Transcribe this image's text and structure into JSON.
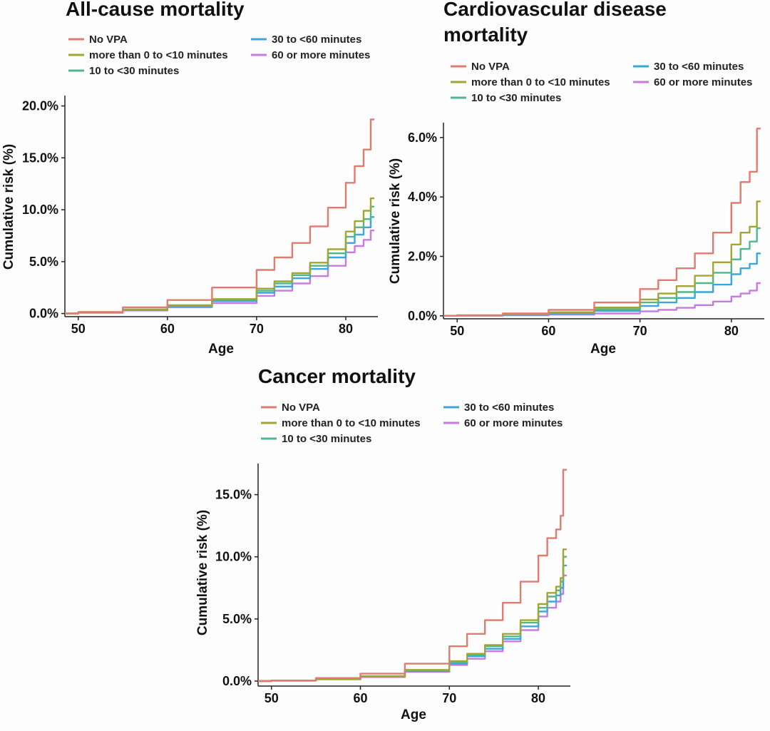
{
  "colors": {
    "No VPA": "#e07b6f",
    "more than 0 to <10 minutes": "#a3a533",
    "10 to <30 minutes": "#4fb88a",
    "30 to <60 minutes": "#3aa6df",
    "60 or more minutes": "#c97ae0"
  },
  "chart_data": [
    {
      "type": "line",
      "title": "All-cause mortality",
      "xlabel": "Age",
      "ylabel": "Cumulative risk (%)",
      "xlim": [
        48.5,
        83.6
      ],
      "ylim": [
        -0.3,
        21
      ],
      "xticks": [
        50,
        60,
        70,
        80
      ],
      "xtick_labels": [
        "50",
        "60",
        "70",
        "80"
      ],
      "yticks": [
        0,
        5,
        10,
        15,
        20
      ],
      "ytick_labels": [
        "0.0%",
        "5.0%",
        "10.0%",
        "15.0%",
        "20.0%"
      ],
      "legend_labels": [
        "No VPA",
        "more than 0 to <10 minutes",
        "10 to <30 minutes",
        "30 to <60 minutes",
        "60 or more minutes"
      ],
      "x": [
        48.5,
        50,
        55,
        60,
        65,
        70,
        72,
        74,
        76,
        78,
        80,
        81,
        82,
        82.8,
        83.2
      ],
      "series": [
        {
          "name": "No VPA",
          "values": [
            0,
            0.15,
            0.6,
            1.3,
            2.5,
            4.2,
            5.4,
            6.8,
            8.4,
            10.2,
            12.6,
            14.2,
            15.8,
            18.7,
            18.7
          ]
        },
        {
          "name": "more than 0 to <10 minutes",
          "values": [
            0,
            0.1,
            0.4,
            0.8,
            1.4,
            2.4,
            3.1,
            3.9,
            4.9,
            6.2,
            7.9,
            8.9,
            9.9,
            11.1,
            11.1
          ]
        },
        {
          "name": "10 to <30 minutes",
          "values": [
            0,
            0.1,
            0.35,
            0.75,
            1.3,
            2.2,
            2.9,
            3.7,
            4.6,
            5.8,
            7.4,
            8.3,
            9.1,
            10.3,
            10.3
          ]
        },
        {
          "name": "30 to <60 minutes",
          "values": [
            0,
            0.1,
            0.32,
            0.7,
            1.2,
            2.0,
            2.6,
            3.4,
            4.3,
            5.4,
            6.8,
            7.6,
            8.3,
            9.3,
            9.3
          ]
        },
        {
          "name": "60 or more minutes",
          "values": [
            0,
            0.08,
            0.3,
            0.6,
            1.0,
            1.7,
            2.2,
            2.9,
            3.6,
            4.6,
            5.9,
            6.5,
            7.1,
            8.0,
            8.0
          ]
        }
      ]
    },
    {
      "type": "line",
      "title": "Cardiovascular disease mortality",
      "xlabel": "Age",
      "ylabel": "Cumulative risk (%)",
      "xlim": [
        48.5,
        83.6
      ],
      "ylim": [
        -0.1,
        6.5
      ],
      "xticks": [
        50,
        60,
        70,
        80
      ],
      "xtick_labels": [
        "50",
        "60",
        "70",
        "80"
      ],
      "yticks": [
        0,
        2,
        4,
        6
      ],
      "ytick_labels": [
        "0.0%",
        "2.0%",
        "4.0%",
        "6.0%"
      ],
      "legend_labels": [
        "No VPA",
        "more than 0 to <10 minutes",
        "10 to <30 minutes",
        "30 to <60 minutes",
        "60 or more minutes"
      ],
      "x": [
        48.5,
        50,
        55,
        60,
        65,
        70,
        72,
        74,
        76,
        78,
        80,
        81,
        82,
        82.8,
        83.2
      ],
      "series": [
        {
          "name": "No VPA",
          "values": [
            0,
            0.02,
            0.08,
            0.2,
            0.45,
            0.9,
            1.2,
            1.6,
            2.1,
            2.8,
            3.8,
            4.5,
            4.85,
            6.3,
            6.3
          ]
        },
        {
          "name": "more than 0 to <10 minutes",
          "values": [
            0,
            0.01,
            0.05,
            0.12,
            0.28,
            0.55,
            0.75,
            1.0,
            1.35,
            1.8,
            2.4,
            2.8,
            3.0,
            3.85,
            3.85
          ]
        },
        {
          "name": "10 to <30 minutes",
          "values": [
            0,
            0.01,
            0.04,
            0.1,
            0.22,
            0.45,
            0.6,
            0.8,
            1.1,
            1.45,
            1.9,
            2.25,
            2.5,
            2.95,
            2.95
          ]
        },
        {
          "name": "30 to <60 minutes",
          "values": [
            0,
            0.01,
            0.03,
            0.08,
            0.17,
            0.33,
            0.45,
            0.6,
            0.8,
            1.05,
            1.4,
            1.6,
            1.75,
            2.1,
            2.1
          ]
        },
        {
          "name": "60 or more minutes",
          "values": [
            0,
            0.005,
            0.02,
            0.04,
            0.08,
            0.15,
            0.2,
            0.27,
            0.36,
            0.48,
            0.65,
            0.75,
            0.85,
            1.1,
            1.1
          ]
        }
      ]
    },
    {
      "type": "line",
      "title": "Cancer mortality",
      "xlabel": "Age",
      "ylabel": "Cumulative risk (%)",
      "xlim": [
        48.5,
        83.6
      ],
      "ylim": [
        -0.4,
        17.5
      ],
      "xticks": [
        50,
        60,
        70,
        80
      ],
      "xtick_labels": [
        "50",
        "60",
        "70",
        "80"
      ],
      "yticks": [
        0,
        5,
        10,
        15
      ],
      "ytick_labels": [
        "0.0%",
        "5.0%",
        "10.0%",
        "15.0%"
      ],
      "legend_labels": [
        "No VPA",
        "more than 0 to <10 minutes",
        "10 to <30 minutes",
        "30 to <60 minutes",
        "60 or more minutes"
      ],
      "x": [
        48.5,
        50,
        55,
        60,
        65,
        70,
        72,
        74,
        76,
        78,
        80,
        81,
        82,
        82.5,
        82.8,
        83.2
      ],
      "series": [
        {
          "name": "No VPA",
          "values": [
            0,
            0.05,
            0.25,
            0.6,
            1.4,
            2.8,
            3.8,
            4.9,
            6.3,
            8.0,
            10.1,
            11.5,
            12.2,
            13.3,
            17.0,
            17.0
          ]
        },
        {
          "name": "more than 0 to <10 minutes",
          "values": [
            0,
            0.04,
            0.18,
            0.4,
            0.9,
            1.6,
            2.2,
            2.9,
            3.8,
            4.9,
            6.2,
            7.1,
            7.6,
            8.3,
            10.6,
            10.6
          ]
        },
        {
          "name": "10 to <30 minutes",
          "values": [
            0,
            0.04,
            0.17,
            0.38,
            0.85,
            1.5,
            2.1,
            2.8,
            3.6,
            4.7,
            5.9,
            6.8,
            7.3,
            8.0,
            10.0,
            10.0
          ]
        },
        {
          "name": "30 to <60 minutes",
          "values": [
            0,
            0.04,
            0.16,
            0.36,
            0.8,
            1.4,
            2.0,
            2.6,
            3.4,
            4.4,
            5.6,
            6.4,
            6.9,
            7.5,
            9.3,
            9.3
          ]
        },
        {
          "name": "60 or more minutes",
          "values": [
            0,
            0.03,
            0.14,
            0.33,
            0.75,
            1.3,
            1.8,
            2.4,
            3.2,
            4.1,
            5.2,
            5.9,
            6.4,
            7.0,
            8.5,
            8.5
          ]
        }
      ]
    }
  ]
}
